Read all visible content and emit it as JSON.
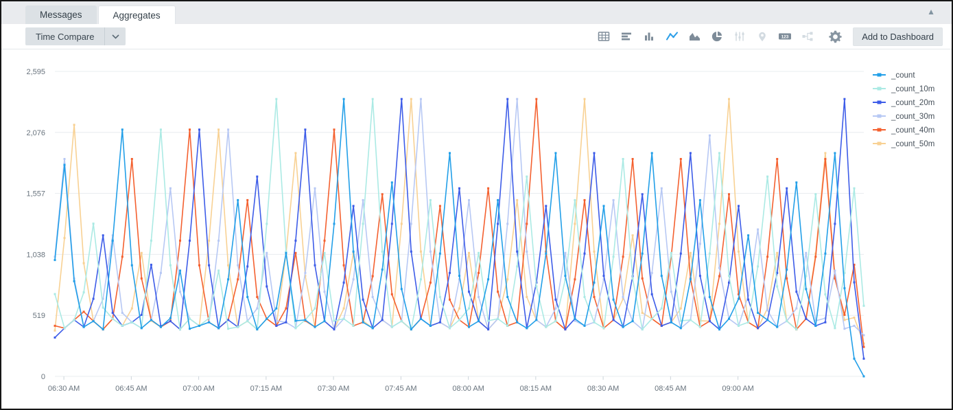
{
  "window": {
    "collapse_icon": "▲"
  },
  "tabs": [
    {
      "label": "Messages",
      "active": false
    },
    {
      "label": "Aggregates",
      "active": true
    }
  ],
  "toolbar": {
    "time_compare_label": "Time Compare",
    "add_to_dashboard_label": "Add to Dashboard",
    "single_value_icon_text": "123",
    "icons": [
      {
        "name": "table-icon",
        "state": "normal"
      },
      {
        "name": "bar-chart-icon",
        "state": "normal"
      },
      {
        "name": "column-chart-icon",
        "state": "normal"
      },
      {
        "name": "line-chart-icon",
        "state": "active"
      },
      {
        "name": "area-chart-icon",
        "state": "normal"
      },
      {
        "name": "pie-chart-icon",
        "state": "normal"
      },
      {
        "name": "box-plot-icon",
        "state": "disabled"
      },
      {
        "name": "map-icon",
        "state": "disabled"
      },
      {
        "name": "single-value-icon",
        "state": "normal"
      },
      {
        "name": "flow-diagram-icon",
        "state": "disabled"
      },
      {
        "name": "gear-icon",
        "state": "normal"
      }
    ]
  },
  "colors": {
    "accent_active": "#2d9fe8",
    "icon_normal": "#7e8c99",
    "icon_disabled": "#d3dbe1",
    "grid": "#e8ecef",
    "axis_text": "#68737d",
    "legend_text": "#454f59",
    "tick": "#ccd4da"
  },
  "chart_data": {
    "type": "line",
    "title": "",
    "legend_position": "top-right",
    "grid": "horizontal-only",
    "x_axis": {
      "tick_labels": [
        "06:30 AM",
        "06:45 AM",
        "07:00 AM",
        "07:15 AM",
        "07:30 AM",
        "07:45 AM",
        "08:00 AM",
        "08:15 AM",
        "08:30 AM",
        "08:45 AM",
        "09:00 AM"
      ],
      "tick_minutes": [
        2,
        17,
        32,
        47,
        62,
        77,
        92,
        107,
        122,
        137,
        152
      ],
      "domain_minutes": 180,
      "start_time": "06:28 AM",
      "end_time": "09:28 AM"
    },
    "y_axis": {
      "max": 2595,
      "ticks": [
        0,
        519,
        1038,
        1557,
        2076,
        2595
      ],
      "tick_labels": [
        "0",
        "519",
        "1,038",
        "1,557",
        "2,076",
        "2,595"
      ]
    },
    "series": [
      {
        "name": "_count",
        "color": "#229fe8",
        "values": [
          990,
          1800,
          810,
          420,
          470,
          400,
          1155,
          2100,
          945,
          410,
          480,
          420,
          495,
          900,
          405,
          430,
          460,
          410,
          825,
          1500,
          675,
          400,
          490,
          578,
          1050,
          473,
          480,
          420,
          470,
          1298,
          2360,
          1062,
          460,
          410,
          908,
          1650,
          743,
          400,
          490,
          430,
          1045,
          1900,
          855,
          420,
          470,
          825,
          1500,
          675,
          460,
          410,
          480,
          1045,
          1900,
          855,
          490,
          430,
          798,
          1450,
          653,
          420,
          470,
          1045,
          1900,
          855,
          460,
          410,
          825,
          1500,
          675,
          400,
          490,
          660,
          1200,
          540,
          480,
          420,
          908,
          1650,
          743,
          430,
          1045,
          1900,
          750,
          150,
          0
        ]
      },
      {
        "name": "_count_10m",
        "color": "#abeae4",
        "values": [
          700,
          410,
          480,
          715,
          1300,
          585,
          490,
          430,
          460,
          410,
          1155,
          2100,
          945,
          400,
          490,
          430,
          495,
          900,
          405,
          420,
          470,
          400,
          1298,
          2360,
          1062,
          410,
          480,
          578,
          1050,
          473,
          490,
          430,
          1298,
          2360,
          1062,
          420,
          470,
          400,
          825,
          1500,
          675,
          410,
          480,
          578,
          1050,
          473,
          490,
          430,
          935,
          1700,
          765,
          420,
          470,
          825,
          1500,
          675,
          460,
          410,
          1018,
          1850,
          833,
          400,
          490,
          578,
          1050,
          473,
          480,
          420,
          1045,
          1900,
          855,
          430,
          460,
          935,
          1700,
          765,
          470,
          400,
          853,
          1550,
          698,
          410,
          880,
          1600,
          600
        ]
      },
      {
        "name": "_count_20m",
        "color": "#3d5ce8",
        "values": [
          330,
          410,
          480,
          420,
          660,
          1200,
          540,
          430,
          460,
          523,
          950,
          428,
          470,
          400,
          1155,
          2100,
          945,
          410,
          480,
          420,
          935,
          1700,
          765,
          430,
          460,
          1155,
          2100,
          945,
          470,
          400,
          798,
          1450,
          653,
          410,
          480,
          1298,
          2360,
          1062,
          490,
          430,
          460,
          880,
          1600,
          720,
          470,
          400,
          1298,
          2360,
          1062,
          410,
          798,
          1450,
          653,
          400,
          490,
          1045,
          1900,
          855,
          480,
          420,
          853,
          1550,
          698,
          430,
          460,
          1045,
          1900,
          855,
          470,
          400,
          798,
          1450,
          653,
          410,
          480,
          880,
          1600,
          720,
          490,
          430,
          460,
          1298,
          2360,
          800,
          150
        ]
      },
      {
        "name": "_count_30m",
        "color": "#b7c8f4",
        "values": [
          1018,
          1850,
          833,
          420,
          470,
          660,
          1200,
          540,
          460,
          410,
          480,
          880,
          1600,
          720,
          490,
          430,
          460,
          1155,
          2100,
          945,
          470,
          578,
          1050,
          473,
          460,
          410,
          880,
          1600,
          720,
          400,
          490,
          825,
          1500,
          675,
          480,
          420,
          470,
          1298,
          2360,
          1062,
          460,
          410,
          825,
          1500,
          675,
          400,
          490,
          1298,
          2360,
          1062,
          480,
          420,
          578,
          1050,
          473,
          430,
          460,
          825,
          1500,
          675,
          470,
          400,
          880,
          1600,
          720,
          410,
          480,
          1128,
          2050,
          923,
          490,
          430,
          688,
          1250,
          563,
          420,
          470,
          578,
          1050,
          473,
          495,
          900,
          405,
          430,
          350
        ]
      },
      {
        "name": "_count_40m",
        "color": "#f4602f",
        "values": [
          430,
          410,
          480,
          550,
          470,
          400,
          490,
          1018,
          1850,
          833,
          480,
          420,
          470,
          1155,
          2100,
          945,
          460,
          410,
          480,
          825,
          1500,
          675,
          490,
          430,
          578,
          1050,
          473,
          420,
          1155,
          2100,
          945,
          430,
          460,
          853,
          1550,
          698,
          470,
          400,
          490,
          798,
          1450,
          653,
          480,
          420,
          880,
          1600,
          720,
          430,
          460,
          1298,
          2360,
          1062,
          470,
          400,
          825,
          1500,
          675,
          410,
          480,
          1018,
          1850,
          833,
          490,
          430,
          1018,
          1850,
          833,
          420,
          470,
          853,
          1550,
          698,
          460,
          410,
          1018,
          1850,
          833,
          400,
          490,
          1018,
          1850,
          833,
          523,
          950,
          250
        ]
      },
      {
        "name": "_count_50m",
        "color": "#f8d193",
        "values": [
          390,
          1177,
          2140,
          963,
          470,
          400,
          490,
          430,
          578,
          1050,
          473,
          420,
          470,
          400,
          490,
          430,
          1155,
          2100,
          945,
          420,
          470,
          400,
          490,
          430,
          1045,
          1900,
          855,
          420,
          470,
          400,
          578,
          1050,
          473,
          410,
          480,
          420,
          1298,
          2360,
          1062,
          430,
          460,
          410,
          578,
          1050,
          473,
          400,
          490,
          825,
          1500,
          675,
          480,
          420,
          470,
          400,
          1298,
          2360,
          1062,
          410,
          480,
          660,
          1200,
          540,
          490,
          430,
          460,
          578,
          1050,
          473,
          470,
          1298,
          2360,
          1062,
          460,
          410,
          578,
          1050,
          473,
          400,
          490,
          1045,
          1900,
          855,
          480,
          500,
          280
        ]
      }
    ]
  }
}
